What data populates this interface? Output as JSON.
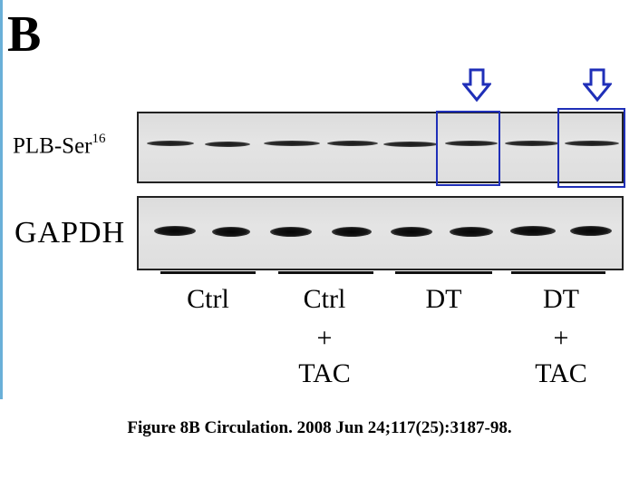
{
  "panel_label": "B",
  "rows": {
    "plb": {
      "label_main": "PLB-Ser",
      "label_sup": "16"
    },
    "gapdh": {
      "label": "GAPDH"
    }
  },
  "groups": [
    {
      "line1": "Ctrl",
      "line2": "",
      "line3": ""
    },
    {
      "line1": "Ctrl",
      "line2": "+",
      "line3": "TAC"
    },
    {
      "line1": "DT",
      "line2": "",
      "line3": ""
    },
    {
      "line1": "DT",
      "line2": "+",
      "line3": "TAC"
    }
  ],
  "highlight_color": "#1f2fb8",
  "citation": "Figure 8B Circulation. 2008 Jun 24;117(25):3187-98."
}
